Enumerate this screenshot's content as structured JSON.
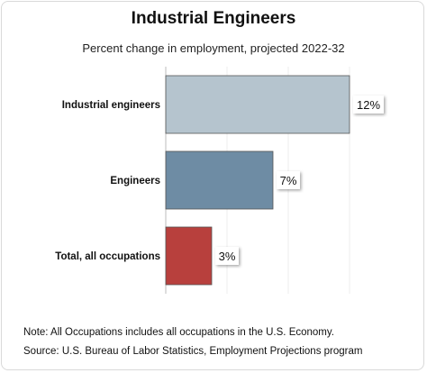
{
  "chart_data": {
    "type": "bar",
    "orientation": "horizontal",
    "title": "Industrial Engineers",
    "subtitle": "Percent change in employment, projected 2022-32",
    "categories": [
      "Industrial engineers",
      "Engineers",
      "Total, all occupations"
    ],
    "values": [
      12,
      7,
      3
    ],
    "value_labels": [
      "12%",
      "7%",
      "3%"
    ],
    "colors": [
      "#b5c4ce",
      "#6e8ca4",
      "#b8403d"
    ],
    "xlim": [
      0,
      12
    ],
    "grid": true
  },
  "notes": {
    "note": "Note: All Occupations includes all occupations in the U.S. Economy.",
    "source": "Source: U.S. Bureau of Labor Statistics, Employment Projections program"
  }
}
